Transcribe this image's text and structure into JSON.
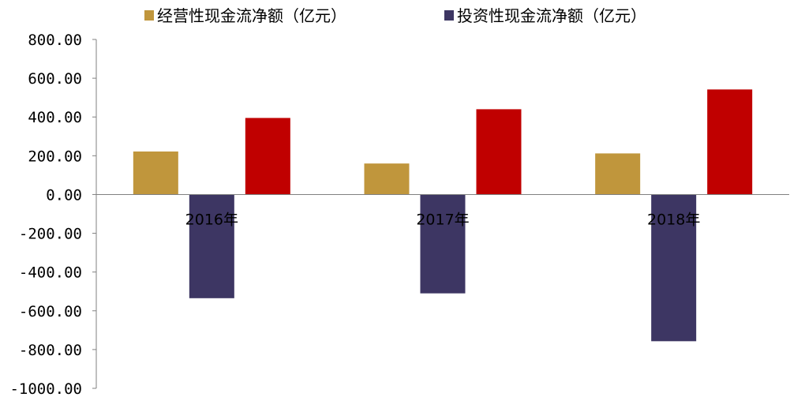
{
  "chart_data": {
    "type": "bar",
    "categories": [
      "2016年",
      "2017年",
      "2018年"
    ],
    "series": [
      {
        "name": "经营性现金流净额（亿元）",
        "values": [
          222,
          160,
          212
        ],
        "color": "#c0963c",
        "in_legend": true
      },
      {
        "name": "投资性现金流净额（亿元）",
        "values": [
          -535,
          -510,
          -757
        ],
        "color": "#3d3663",
        "in_legend": true
      },
      {
        "name": "",
        "values": [
          395,
          440,
          542
        ],
        "color": "#c00000",
        "in_legend": false
      }
    ],
    "y_ticks": [
      "800.00",
      "600.00",
      "400.00",
      "200.00",
      "0.00",
      "-200.00",
      "-400.00",
      "-600.00",
      "-800.00",
      "-1000.00"
    ],
    "ylim": [
      -1000,
      800
    ],
    "grid": false,
    "legend_position": "top",
    "title": "",
    "xlabel": "",
    "ylabel": ""
  }
}
